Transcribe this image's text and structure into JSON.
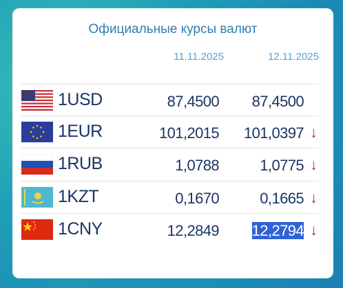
{
  "header": {
    "title": "Официальные курсы валют",
    "dates": [
      "11.11.2025",
      "12.11.2025"
    ]
  },
  "table": {
    "rows": [
      {
        "currency": "1USD",
        "rates": [
          "87,4500",
          "87,4500"
        ]
      },
      {
        "currency": "1EUR",
        "rates": [
          "101,2015",
          "101,0397"
        ],
        "trend": "↓"
      },
      {
        "currency": "1RUB",
        "rates": [
          "1,0788",
          "1,0775"
        ],
        "trend": "↓"
      },
      {
        "currency": "1KZT",
        "rates": [
          "0,1670",
          "0,1665"
        ],
        "trend": "↓"
      },
      {
        "currency": "1CNY",
        "rates": [
          "12,2849",
          "12,2794"
        ],
        "trend": "↓"
      }
    ]
  }
}
